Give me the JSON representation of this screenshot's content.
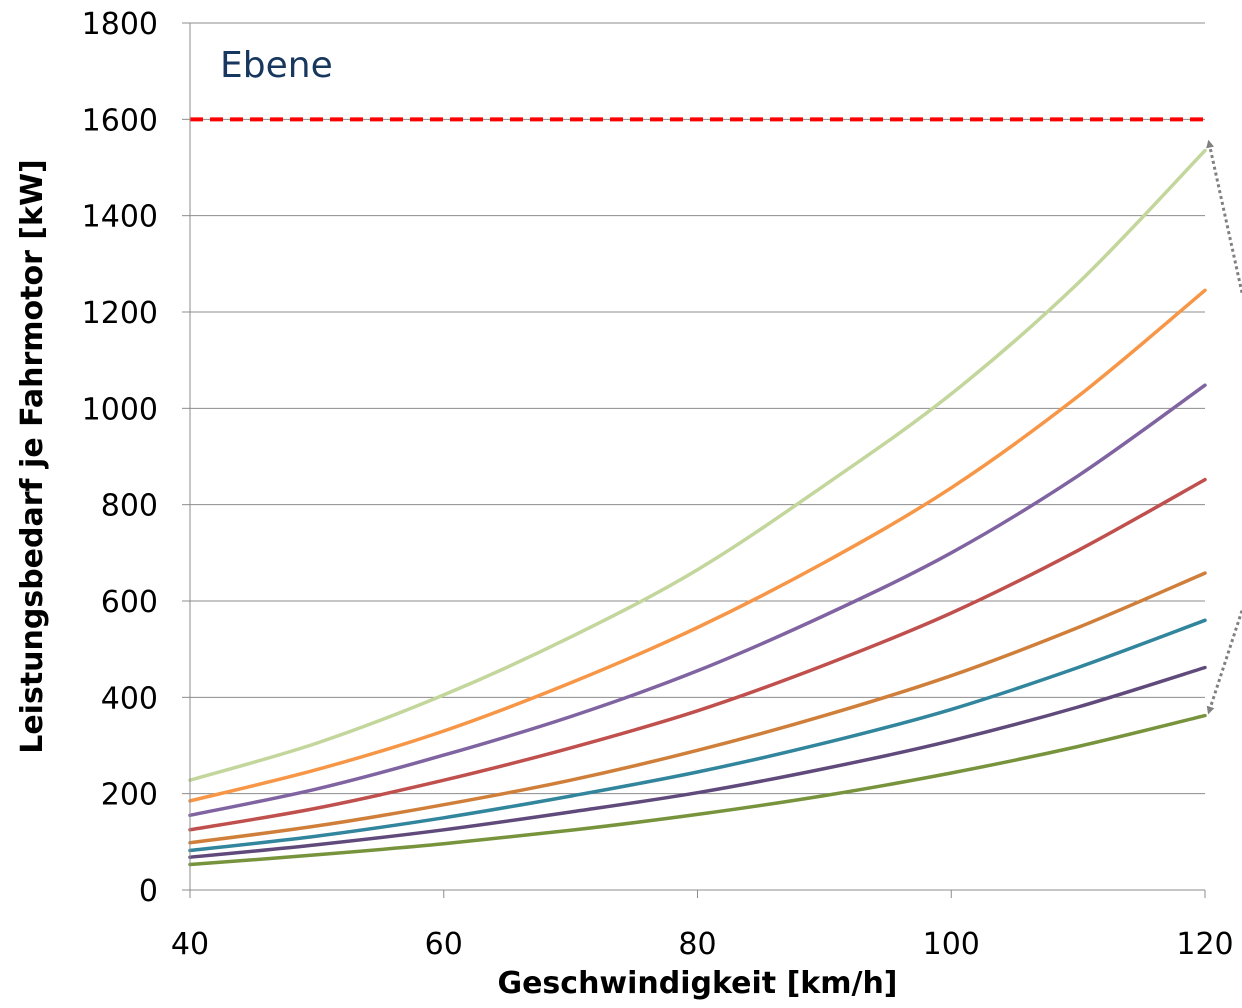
{
  "chart_data": {
    "type": "line",
    "title": "",
    "xlabel": "Geschwindigkeit [km/h]",
    "ylabel": "Leistungsbedarf je Fahrmotor [kW]",
    "xlim": [
      40,
      120
    ],
    "ylim": [
      0,
      1800
    ],
    "xticks": [
      40,
      60,
      80,
      100,
      120
    ],
    "yticks": [
      0,
      200,
      400,
      600,
      800,
      1000,
      1200,
      1400,
      1600,
      1800
    ],
    "grid": "horizontal",
    "legend": "none",
    "annotation": {
      "text": "Ebene",
      "color": "#17375e"
    },
    "reference_line": {
      "y": 1600,
      "color": "#ff0000",
      "style": "dashed"
    },
    "arrow_color": "#808080",
    "x": [
      40,
      50,
      60,
      70,
      80,
      90,
      100,
      110,
      120
    ],
    "series": [
      {
        "color": "#c3d69b",
        "values": [
          228,
          305,
          405,
          525,
          665,
          840,
          1030,
          1260,
          1535
        ]
      },
      {
        "color": "#f79646",
        "values": [
          185,
          250,
          330,
          430,
          545,
          680,
          835,
          1025,
          1245
        ]
      },
      {
        "color": "#8064a2",
        "values": [
          155,
          210,
          280,
          360,
          455,
          570,
          700,
          860,
          1048
        ]
      },
      {
        "color": "#c0504d",
        "values": [
          125,
          170,
          228,
          295,
          372,
          467,
          575,
          705,
          852
        ]
      },
      {
        "color": "#d07f3a",
        "values": [
          98,
          133,
          177,
          228,
          290,
          362,
          445,
          545,
          658
        ]
      },
      {
        "color": "#31859c",
        "values": [
          82,
          112,
          150,
          195,
          245,
          305,
          375,
          462,
          560
        ]
      },
      {
        "color": "#604a7b",
        "values": [
          68,
          94,
          125,
          162,
          202,
          252,
          310,
          380,
          462
        ]
      },
      {
        "color": "#77933c",
        "values": [
          53,
          73,
          96,
          124,
          157,
          196,
          243,
          298,
          362
        ]
      }
    ]
  }
}
